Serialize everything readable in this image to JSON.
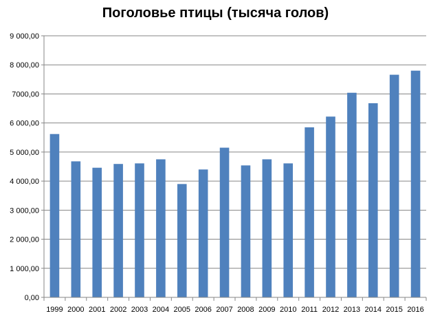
{
  "chart_data": {
    "type": "bar",
    "title": "Поголовье птицы (тысяча голов)",
    "xlabel": "",
    "ylabel": "",
    "categories": [
      "1999",
      "2000",
      "2001",
      "2002",
      "2003",
      "2004",
      "2005",
      "2006",
      "2007",
      "2008",
      "2009",
      "2010",
      "2011",
      "2012",
      "2013",
      "2014",
      "2015",
      "2016"
    ],
    "values": [
      5620,
      4680,
      4460,
      4590,
      4610,
      4750,
      3900,
      4400,
      5150,
      4540,
      4750,
      4610,
      5850,
      6220,
      7040,
      6680,
      7660,
      7800
    ],
    "ylim": [
      0,
      9000
    ],
    "yticks": [
      "0,00",
      "1 000,00",
      "2 000,00",
      "3 000,00",
      "4 000,00",
      "5 000,00",
      "6 000,00",
      "7000,00",
      "8 000,00",
      "9 000,00"
    ],
    "grid": true,
    "bar_color": "#4F81BD",
    "gridline_color": "#868686"
  }
}
